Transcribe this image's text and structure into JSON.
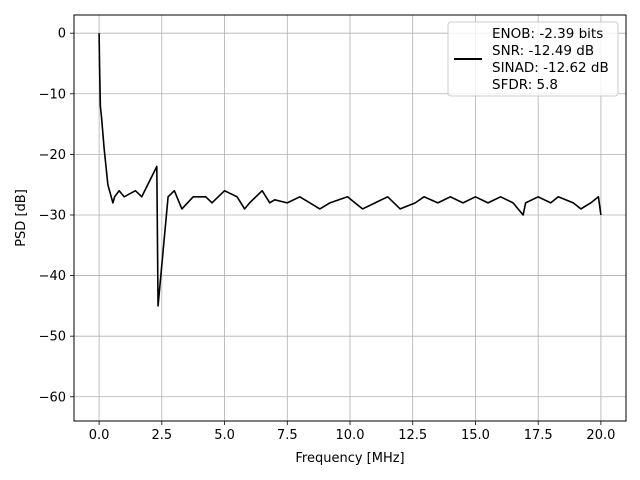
{
  "chart_data": {
    "type": "line",
    "title": "",
    "xlabel": "Frequency [MHz]",
    "ylabel": "PSD [dB]",
    "xlim": [
      -1.0,
      21.0
    ],
    "ylim": [
      -64.0,
      3.0
    ],
    "xticks": [
      0.0,
      2.5,
      5.0,
      7.5,
      10.0,
      12.5,
      15.0,
      17.5,
      20.0
    ],
    "xtick_labels": [
      "0.0",
      "2.5",
      "5.0",
      "7.5",
      "10.0",
      "12.5",
      "15.0",
      "17.5",
      "20.0"
    ],
    "yticks": [
      0,
      -10,
      -20,
      -30,
      -40,
      -50,
      -60
    ],
    "ytick_labels": [
      "0",
      "−10",
      "−20",
      "−30",
      "−40",
      "−50",
      "−60"
    ],
    "grid": true,
    "legend_position": "top-right",
    "legend_entries": [
      "ENOB: -2.39 bits",
      "SNR: -12.49 dB",
      "SINAD: -12.62 dB",
      "SFDR: 5.8"
    ],
    "series": [
      {
        "color": "#000000",
        "x": [
          0.0,
          0.02,
          0.05,
          0.1,
          0.2,
          0.35,
          0.55,
          0.62,
          0.8,
          1.0,
          1.45,
          1.7,
          2.3,
          2.35,
          2.75,
          3.0,
          3.3,
          3.75,
          4.25,
          4.5,
          5.0,
          5.5,
          5.8,
          6.0,
          6.5,
          6.8,
          7.0,
          7.5,
          8.0,
          8.8,
          9.2,
          9.9,
          10.2,
          10.5,
          11.0,
          11.5,
          11.75,
          12.0,
          12.6,
          12.95,
          13.5,
          14.0,
          14.5,
          15.0,
          15.5,
          16.0,
          16.5,
          16.9,
          17.0,
          17.5,
          18.0,
          18.3,
          18.9,
          19.2,
          19.6,
          19.9,
          20.0
        ],
        "y": [
          0.0,
          -5.5,
          -12.0,
          -14.0,
          -19.0,
          -25.0,
          -28.0,
          -27.0,
          -26.0,
          -27.0,
          -26.0,
          -27.0,
          -22.0,
          -45.0,
          -27.0,
          -26.0,
          -29.0,
          -27.0,
          -27.0,
          -28.0,
          -26.0,
          -27.0,
          -29.0,
          -28.0,
          -26.0,
          -28.0,
          -27.5,
          -28.0,
          -27.0,
          -29.0,
          -28.0,
          -27.0,
          -28.0,
          -29.0,
          -28.0,
          -27.0,
          -28.0,
          -29.0,
          -28.0,
          -27.0,
          -28.0,
          -27.0,
          -28.0,
          -27.0,
          -28.0,
          -27.0,
          -28.0,
          -30.0,
          -28.0,
          -27.0,
          -28.0,
          -27.0,
          -28.0,
          -29.0,
          -28.0,
          -27.0,
          -30.0
        ]
      }
    ]
  }
}
